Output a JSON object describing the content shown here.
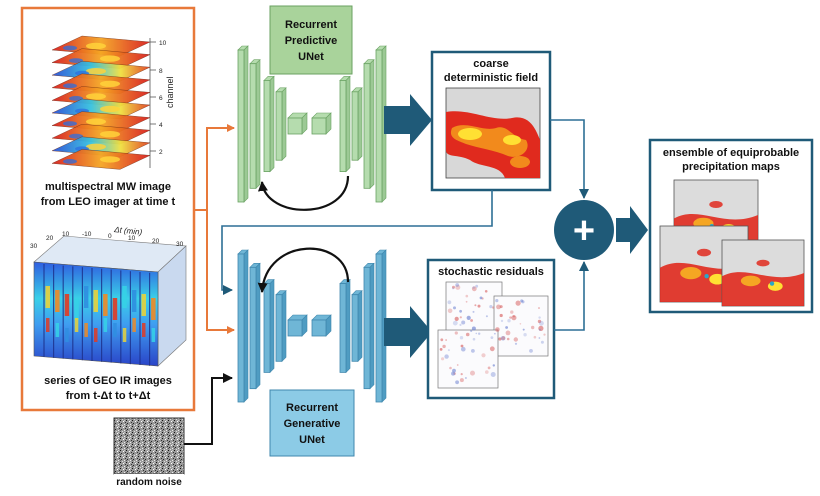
{
  "inputs": {
    "mw_caption": [
      "multispectral MW image",
      "from LEO imager at time t"
    ],
    "mw_axis_label": "channel",
    "mw_ticks": [
      "10",
      "8",
      "6",
      "4",
      "2"
    ],
    "geo_caption": [
      "series of GEO IR images",
      "from t-Δt  to  t+Δt"
    ],
    "geo_axis_label": "Δt (min)",
    "geo_ticks": [
      "30",
      "20",
      "10",
      "-10",
      "0",
      "10",
      "20",
      "30"
    ]
  },
  "noise": {
    "label": "random noise"
  },
  "predictive_unet": {
    "label": [
      "Recurrent",
      "Predictive",
      "UNet"
    ]
  },
  "generative_unet": {
    "label": [
      "Recurrent",
      "Generative",
      "UNet"
    ]
  },
  "coarse_field": {
    "label": [
      "coarse",
      "deterministic field"
    ]
  },
  "residuals": {
    "label": "stochastic residuals"
  },
  "combine": {
    "symbol": "+"
  },
  "ensemble": {
    "label": [
      "ensemble of equiprobable",
      "precipitation maps"
    ]
  },
  "colors": {
    "orange": "#e8793a",
    "green_block": "#b5dcae",
    "green_edge": "#6aa262",
    "blue_block": "#6fb6d6",
    "blue_edge": "#3f87ad",
    "teal": "#1f5a78",
    "label_green": "#a9d39b",
    "label_blue": "#8ccbe6"
  }
}
